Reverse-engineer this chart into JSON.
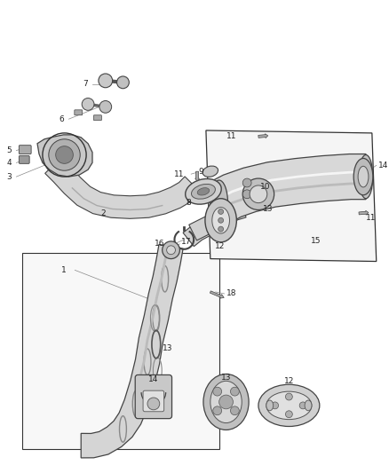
{
  "background_color": "#ffffff",
  "fig_width": 4.38,
  "fig_height": 5.33,
  "dpi": 100,
  "edge_color": "#444444",
  "pipe_fill": "#d8d8d8",
  "pipe_dark": "#aaaaaa",
  "pipe_light": "#f0f0f0",
  "box_fill": "#f8f8f8",
  "detail_fill": "#cccccc",
  "label_color": "#222222",
  "leader_color": "#888888",
  "line_width": 0.7,
  "label_fontsize": 6.5
}
